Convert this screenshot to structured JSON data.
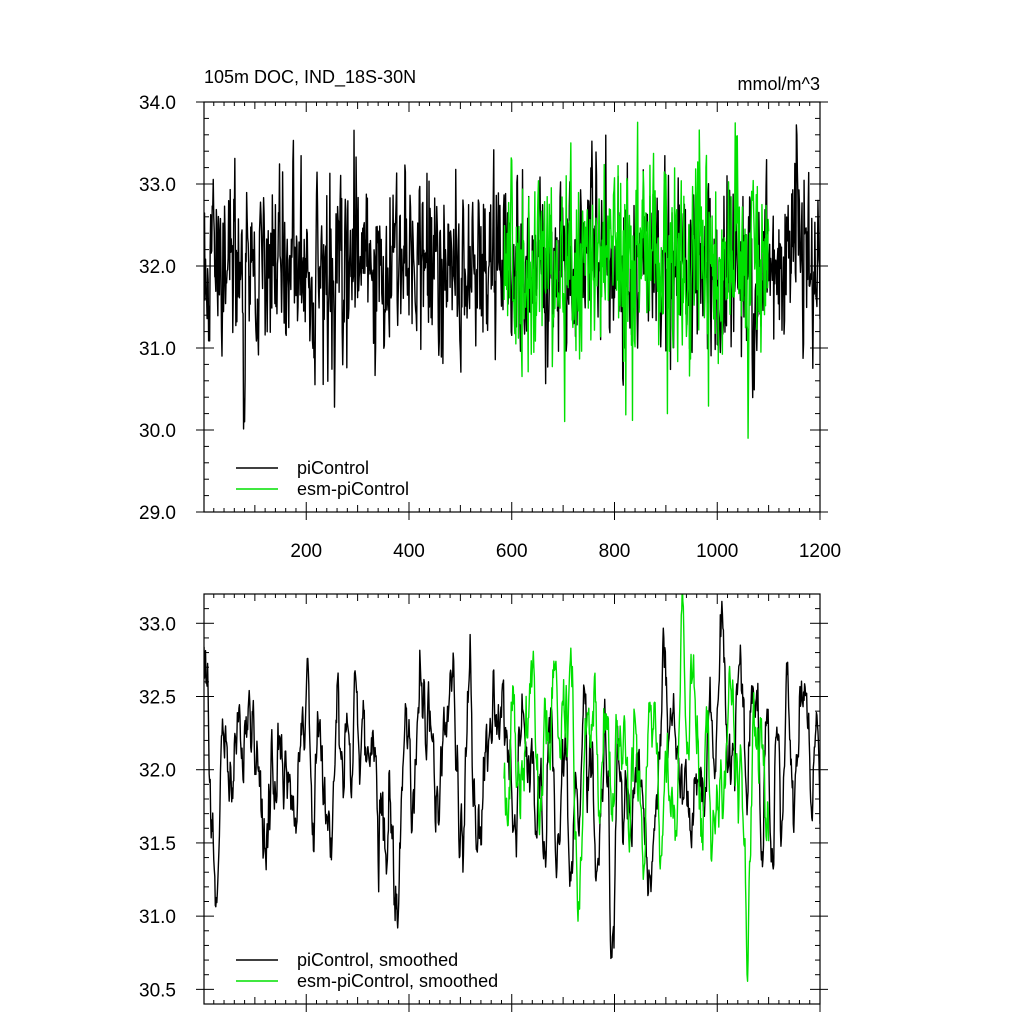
{
  "chart_data": [
    {
      "type": "line",
      "title": "105m DOC, IND_18S-30N",
      "units": "mmol/m^3",
      "xlabel": "",
      "ylabel": "",
      "xlim": [
        1,
        1200
      ],
      "ylim": [
        29.0,
        34.0
      ],
      "xticks": [
        200,
        400,
        600,
        800,
        1000,
        1200
      ],
      "xtick_labels": [
        "200",
        "400",
        "600",
        "800",
        "1000",
        "1200"
      ],
      "yticks": [
        29.0,
        30.0,
        31.0,
        32.0,
        33.0,
        34.0
      ],
      "ytick_labels": [
        "29.0",
        "30.0",
        "31.0",
        "32.0",
        "33.0",
        "34.0"
      ],
      "grid": false,
      "legend_position": "bottom-left",
      "series": [
        {
          "name": "piControl",
          "color": "#000000",
          "x_range": [
            1,
            1200
          ],
          "mean": 32.0,
          "amplitude": 0.55,
          "min_point": [
            80,
            30.1
          ],
          "max_point": [
            1155,
            33.6
          ]
        },
        {
          "name": "esm-piControl",
          "color": "#00e000",
          "x_range": [
            585,
            1100
          ],
          "mean": 32.05,
          "amplitude": 0.6,
          "min_point": [
            1060,
            29.9
          ],
          "max_point": [
            715,
            33.5
          ]
        }
      ]
    },
    {
      "type": "line",
      "title": "",
      "xlabel": "",
      "ylabel": "",
      "xlim": [
        1,
        1200
      ],
      "ylim": [
        30.4,
        33.2
      ],
      "yticks": [
        30.5,
        31.0,
        31.5,
        32.0,
        32.5,
        33.0
      ],
      "ytick_labels": [
        "30.5",
        "31.0",
        "31.5",
        "32.0",
        "32.5",
        "33.0"
      ],
      "grid": false,
      "legend_position": "bottom-left",
      "series": [
        {
          "name": "piControl, smoothed",
          "color": "#000000",
          "x_range": [
            1,
            1200
          ],
          "mean": 32.0,
          "amplitude": 0.38,
          "min_point": [
            375,
            31.05
          ],
          "max_point": [
            1045,
            32.85
          ]
        },
        {
          "name": "esm-piControl, smoothed",
          "color": "#00e000",
          "x_range": [
            585,
            1100
          ],
          "mean": 32.05,
          "amplitude": 0.38,
          "min_point": [
            1060,
            30.7
          ],
          "max_point": [
            715,
            32.83
          ]
        }
      ]
    }
  ]
}
